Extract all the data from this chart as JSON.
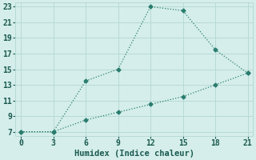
{
  "xlabel": "Humidex (Indice chaleur)",
  "line1_x": [
    0,
    3,
    6,
    9,
    12,
    15,
    18,
    21
  ],
  "line1_y": [
    7,
    7,
    13.5,
    15,
    23,
    22.5,
    17.5,
    14.5
  ],
  "line2_x": [
    0,
    3,
    6,
    9,
    12,
    15,
    18,
    21
  ],
  "line2_y": [
    7,
    7,
    8.5,
    9.5,
    10.5,
    11.5,
    13.0,
    14.5
  ],
  "line_color": "#2a7d6e",
  "bg_color": "#d5eeeb",
  "grid_color": "#b8dad6",
  "xlim": [
    -0.5,
    21.5
  ],
  "ylim": [
    6.5,
    23.5
  ],
  "xticks": [
    0,
    3,
    6,
    9,
    12,
    15,
    18,
    21
  ],
  "yticks": [
    7,
    9,
    11,
    13,
    15,
    17,
    19,
    21,
    23
  ],
  "markersize": 2.5,
  "linewidth": 0.9,
  "xlabel_fontsize": 7.5,
  "tick_fontsize": 7
}
